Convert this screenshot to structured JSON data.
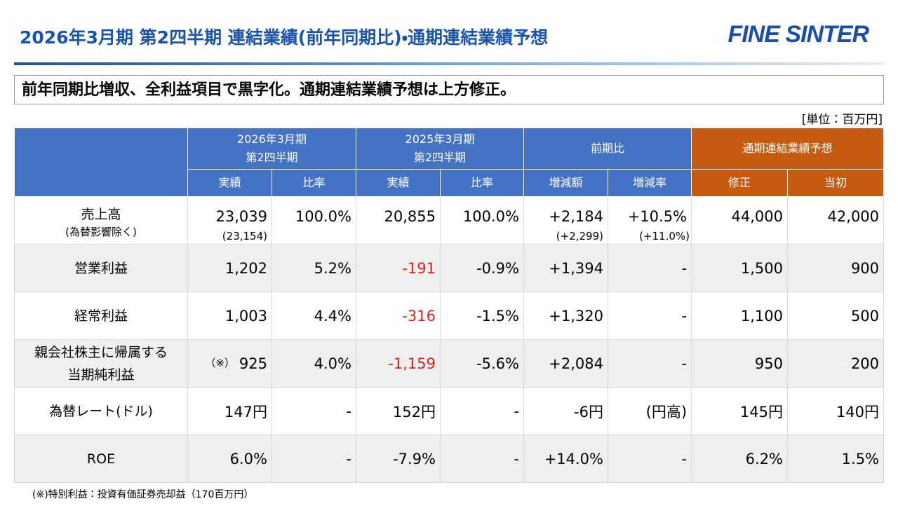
{
  "header": {
    "title": "2026年3月期 第2四半期 連結業績(前年同期比)・通期連結業績予想",
    "logo": "FINE SINTER"
  },
  "headline": "前年同期比増収、全利益項目で黒字化。通期連結業績予想は上方修正。",
  "unit": "[単位：百万円]",
  "table": {
    "groups": [
      [
        "2026年3月期",
        "第2四半期"
      ],
      [
        "2025年3月期",
        "第2四半期"
      ],
      [
        "前期比"
      ],
      [
        "通期連結業績予想"
      ]
    ],
    "group_colors": [
      "#4472c4",
      "#4472c4",
      "#4472c4",
      "#c55a11"
    ],
    "subheaders": [
      "実績",
      "比率",
      "実績",
      "比率",
      "増減額",
      "増減率",
      "修正",
      "当初"
    ],
    "red_color": "#e0201b",
    "rows": [
      {
        "label": [
          "売上高"
        ],
        "label_note": "(為替影響除く)",
        "cells": [
          "23,039",
          "100.0%",
          "20,855",
          "100.0%",
          "+2,184",
          "+10.5%",
          "44,000",
          "42,000"
        ],
        "subcells": [
          "(23,154)",
          null,
          null,
          null,
          "(+2,299)",
          "(+11.0%)",
          null,
          null
        ],
        "shaded": false
      },
      {
        "label": [
          "営業利益"
        ],
        "cells": [
          "1,202",
          "5.2%",
          "-191",
          "-0.9%",
          "+1,394",
          "-",
          "1,500",
          "900"
        ],
        "red_columns": [
          2
        ],
        "shaded": true
      },
      {
        "label": [
          "経常利益"
        ],
        "cells": [
          "1,003",
          "4.4%",
          "-316",
          "-1.5%",
          "+1,320",
          "-",
          "1,100",
          "500"
        ],
        "red_columns": [
          2
        ],
        "shaded": false
      },
      {
        "label": [
          "親会社株主に帰属する",
          "当期純利益"
        ],
        "note_mark": "（※）",
        "cells": [
          "925",
          "4.0%",
          "-1,159",
          "-5.6%",
          "+2,084",
          "-",
          "950",
          "200"
        ],
        "red_columns": [
          2
        ],
        "shaded": true
      },
      {
        "label": [
          "為替レート(ドル)"
        ],
        "cells": [
          "147円",
          "-",
          "152円",
          "-",
          "-6円",
          "(円高)",
          "145円",
          "140円"
        ],
        "shaded": false
      },
      {
        "label": [
          "ROE"
        ],
        "cells": [
          "6.0%",
          "-",
          "-7.9%",
          "-",
          "+14.0%",
          "-",
          "6.2%",
          "1.5%"
        ],
        "shaded": true
      }
    ]
  },
  "footnote": "(※)特別利益：投資有価証券売却益（170百万円）"
}
